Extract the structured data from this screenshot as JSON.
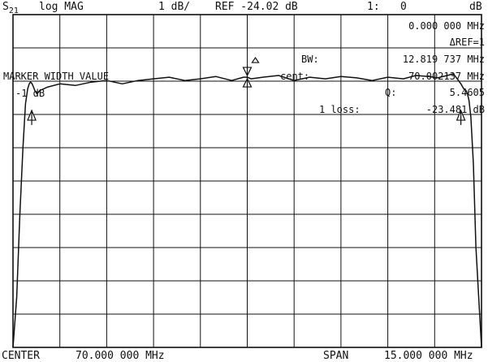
{
  "header": {
    "param_main": "S",
    "param_sub": "21",
    "format": "log MAG",
    "scale": "1 dB/",
    "ref": "REF -24.02 dB",
    "marker_tag": "1:",
    "marker_readout_value": "0",
    "units": "dB"
  },
  "annotations": {
    "marker_freq": "0.000 000 MHz",
    "delta_ref": "ΔREF=1",
    "bw_label": "BW:",
    "bw_value": "12.819 737 MHz",
    "cent_label": "cent:",
    "cent_value": "70.002137 MHz",
    "q_label": "Q:",
    "q_value": "5.4605",
    "loss_label": "1 loss:",
    "loss_value": "-23.481 dB",
    "marker_width_title": "MARKER WIDTH VALUE",
    "marker_width_value": "-1 dB"
  },
  "footer": {
    "center_label": "CENTER",
    "center_value": "70.000 000 MHz",
    "span_label": "SPAN",
    "span_value": "15.000 000 MHz"
  },
  "chart_data": {
    "type": "line",
    "x_unit": "MHz",
    "y_unit": "dB",
    "xlim": [
      62.5,
      77.5
    ],
    "ylim": [
      -33.02,
      -23.02
    ],
    "reference_level": -24.02,
    "scale_per_div": 1,
    "grid": true,
    "series": [
      {
        "values_x": [
          62.5,
          62.62,
          62.72,
          62.82,
          62.9,
          62.97,
          63.02,
          63.06,
          63.1,
          63.15,
          63.2,
          63.27,
          63.36,
          63.6,
          64.0,
          64.5,
          65.0,
          65.5,
          66.0,
          66.5,
          67.0,
          67.5,
          68.0,
          68.5,
          69.0,
          69.5,
          69.88,
          70.0,
          70.12,
          70.5,
          71.0,
          71.5,
          72.0,
          72.5,
          73.0,
          73.5,
          74.0,
          74.5,
          75.0,
          75.4,
          75.8,
          76.1,
          76.4,
          76.6,
          76.72,
          76.84,
          76.93,
          77.0,
          77.05,
          77.1,
          77.16,
          77.24,
          77.32,
          77.5
        ],
        "values_y": [
          -33.02,
          -31.5,
          -29.0,
          -27.0,
          -25.7,
          -25.25,
          -25.1,
          -25.05,
          -25.08,
          -25.18,
          -25.3,
          -25.4,
          -25.3,
          -25.2,
          -25.1,
          -25.15,
          -25.05,
          -25.0,
          -25.1,
          -25.0,
          -24.95,
          -24.9,
          -25.0,
          -24.95,
          -24.88,
          -25.0,
          -24.9,
          -24.9,
          -24.95,
          -24.9,
          -24.85,
          -25.0,
          -24.9,
          -24.95,
          -24.88,
          -24.92,
          -25.0,
          -24.9,
          -24.95,
          -24.85,
          -24.88,
          -24.92,
          -24.85,
          -24.8,
          -24.95,
          -25.1,
          -25.25,
          -25.3,
          -25.4,
          -25.6,
          -26.1,
          -27.5,
          -30.0,
          -33.02
        ]
      }
    ],
    "markers": [
      {
        "label": "1",
        "x": 70.0,
        "y": -24.9,
        "style": "active"
      },
      {
        "label": "2",
        "x": 63.1,
        "y": -25.9,
        "style": "edge"
      },
      {
        "label": "3",
        "x": 76.84,
        "y": -25.9,
        "style": "edge"
      }
    ]
  }
}
